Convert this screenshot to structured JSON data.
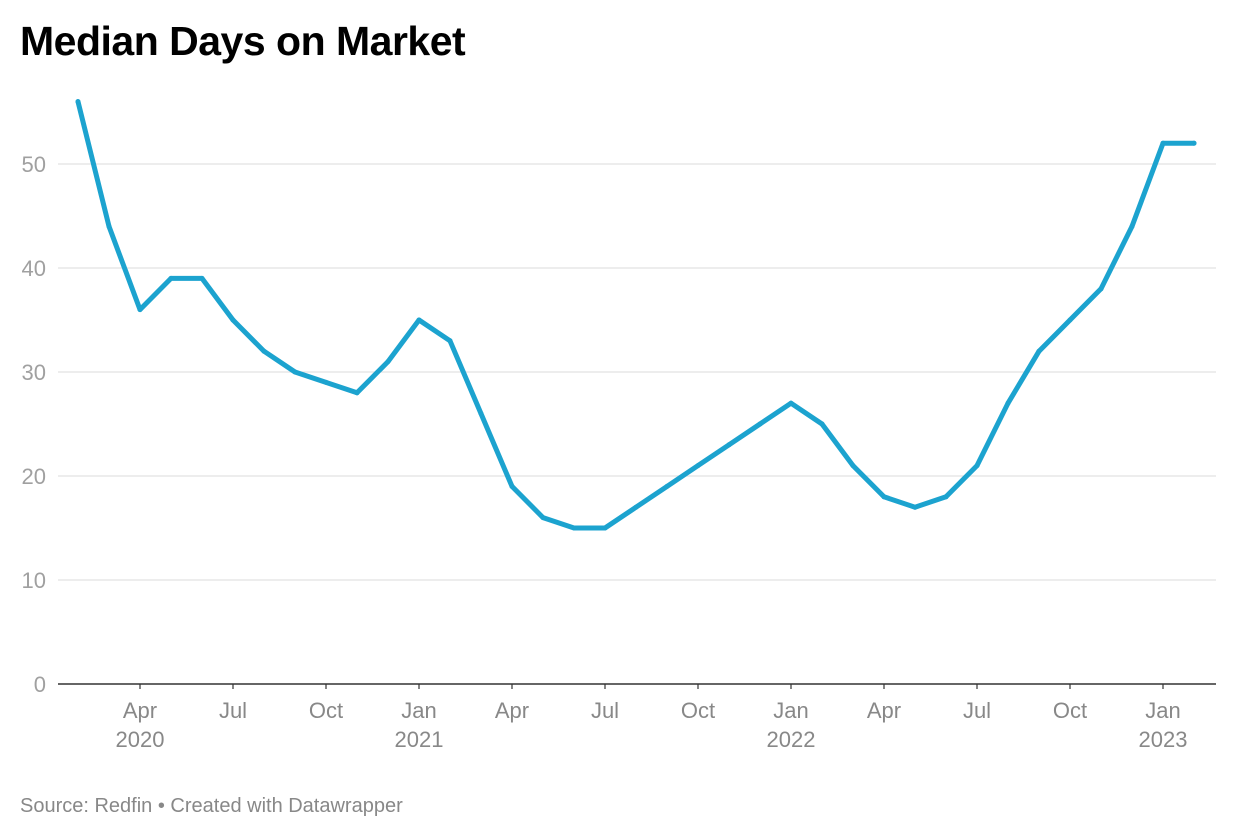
{
  "chart_data": {
    "type": "line",
    "title": "Median Days on Market",
    "xlabel": "",
    "ylabel": "",
    "ylim": [
      0,
      55
    ],
    "yticks": [
      0,
      10,
      20,
      30,
      40,
      50
    ],
    "grid": true,
    "legend": "none",
    "x_ticks": [
      {
        "date": "2020-04",
        "month": "Apr",
        "year": "2020"
      },
      {
        "date": "2020-07",
        "month": "Jul",
        "year": ""
      },
      {
        "date": "2020-10",
        "month": "Oct",
        "year": ""
      },
      {
        "date": "2021-01",
        "month": "Jan",
        "year": "2021"
      },
      {
        "date": "2021-04",
        "month": "Apr",
        "year": ""
      },
      {
        "date": "2021-07",
        "month": "Jul",
        "year": ""
      },
      {
        "date": "2021-10",
        "month": "Oct",
        "year": ""
      },
      {
        "date": "2022-01",
        "month": "Jan",
        "year": "2022"
      },
      {
        "date": "2022-04",
        "month": "Apr",
        "year": ""
      },
      {
        "date": "2022-07",
        "month": "Jul",
        "year": ""
      },
      {
        "date": "2022-10",
        "month": "Oct",
        "year": ""
      },
      {
        "date": "2023-01",
        "month": "Jan",
        "year": "2023"
      }
    ],
    "x_range": [
      "2020-01",
      "2023-03"
    ],
    "series": [
      {
        "name": "",
        "color": "#1ca3cf",
        "points": [
          {
            "x": "2020-02",
            "y": 56
          },
          {
            "x": "2020-03",
            "y": 44
          },
          {
            "x": "2020-04",
            "y": 36
          },
          {
            "x": "2020-05",
            "y": 39
          },
          {
            "x": "2020-06",
            "y": 39
          },
          {
            "x": "2020-07",
            "y": 35
          },
          {
            "x": "2020-08",
            "y": 32
          },
          {
            "x": "2020-09",
            "y": 30
          },
          {
            "x": "2020-10",
            "y": 29
          },
          {
            "x": "2020-11",
            "y": 28
          },
          {
            "x": "2020-12",
            "y": 31
          },
          {
            "x": "2021-01",
            "y": 35
          },
          {
            "x": "2021-02",
            "y": 33
          },
          {
            "x": "2021-03",
            "y": 26
          },
          {
            "x": "2021-04",
            "y": 19
          },
          {
            "x": "2021-05",
            "y": 16
          },
          {
            "x": "2021-06",
            "y": 15
          },
          {
            "x": "2021-07",
            "y": 15
          },
          {
            "x": "2021-08",
            "y": 17
          },
          {
            "x": "2021-09",
            "y": 19
          },
          {
            "x": "2021-10",
            "y": 21
          },
          {
            "x": "2021-11",
            "y": 23
          },
          {
            "x": "2021-12",
            "y": 25
          },
          {
            "x": "2022-01",
            "y": 27
          },
          {
            "x": "2022-02",
            "y": 25
          },
          {
            "x": "2022-03",
            "y": 21
          },
          {
            "x": "2022-04",
            "y": 18
          },
          {
            "x": "2022-05",
            "y": 17
          },
          {
            "x": "2022-06",
            "y": 18
          },
          {
            "x": "2022-07",
            "y": 21
          },
          {
            "x": "2022-08",
            "y": 27
          },
          {
            "x": "2022-09",
            "y": 32
          },
          {
            "x": "2022-10",
            "y": 35
          },
          {
            "x": "2022-11",
            "y": 38
          },
          {
            "x": "2022-12",
            "y": 44
          },
          {
            "x": "2023-01",
            "y": 52
          },
          {
            "x": "2023-02",
            "y": 52
          }
        ]
      }
    ],
    "colors": {
      "line": "#1ca3cf",
      "grid": "#e2e2e2",
      "axis": "#333333",
      "tick_text": "#a0a0a0"
    }
  },
  "footer": {
    "text": "Source: Redfin • Created with Datawrapper"
  }
}
